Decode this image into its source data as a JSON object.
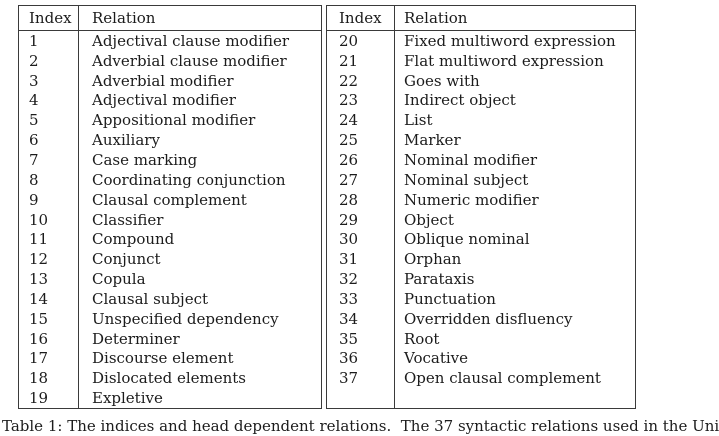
{
  "page": {
    "background": "#ffffff",
    "text_color": "#1c1c1c",
    "border_color": "#3a3a3a"
  },
  "tables": [
    {
      "name": "relations-1-19",
      "headers": {
        "index": "Index",
        "relation": "Relation"
      },
      "rows": [
        [
          "1",
          "Adjectival clause modifier"
        ],
        [
          "2",
          "Adverbial clause modifier"
        ],
        [
          "3",
          "Adverbial modifier"
        ],
        [
          "4",
          "Adjectival modifier"
        ],
        [
          "5",
          "Appositional modifier"
        ],
        [
          "6",
          "Auxiliary"
        ],
        [
          "7",
          "Case marking"
        ],
        [
          "8",
          "Coordinating conjunction"
        ],
        [
          "9",
          "Clausal complement"
        ],
        [
          "10",
          "Classifier"
        ],
        [
          "11",
          "Compound"
        ],
        [
          "12",
          "Conjunct"
        ],
        [
          "13",
          "Copula"
        ],
        [
          "14",
          "Clausal subject"
        ],
        [
          "15",
          "Unspecified dependency"
        ],
        [
          "16",
          "Determiner"
        ],
        [
          "17",
          "Discourse element"
        ],
        [
          "18",
          "Dislocated elements"
        ],
        [
          "19",
          "Expletive"
        ]
      ]
    },
    {
      "name": "relations-20-37",
      "headers": {
        "index": "Index",
        "relation": "Relation"
      },
      "rows": [
        [
          "20",
          "Fixed multiword expression"
        ],
        [
          "21",
          "Flat multiword expression"
        ],
        [
          "22",
          "Goes with"
        ],
        [
          "23",
          "Indirect object"
        ],
        [
          "24",
          "List"
        ],
        [
          "25",
          "Marker"
        ],
        [
          "26",
          "Nominal modifier"
        ],
        [
          "27",
          "Nominal subject"
        ],
        [
          "28",
          "Numeric modifier"
        ],
        [
          "29",
          "Object"
        ],
        [
          "30",
          "Oblique nominal"
        ],
        [
          "31",
          "Orphan"
        ],
        [
          "32",
          "Parataxis"
        ],
        [
          "33",
          "Punctuation"
        ],
        [
          "34",
          "Overridden disfluency"
        ],
        [
          "35",
          "Root"
        ],
        [
          "36",
          "Vocative"
        ],
        [
          "37",
          "Open clausal complement"
        ],
        [
          "",
          ""
        ]
      ]
    }
  ],
  "caption": {
    "text": "Table 1: The indices and head dependent relations.  The 37 syntactic relations used in the Uni"
  }
}
